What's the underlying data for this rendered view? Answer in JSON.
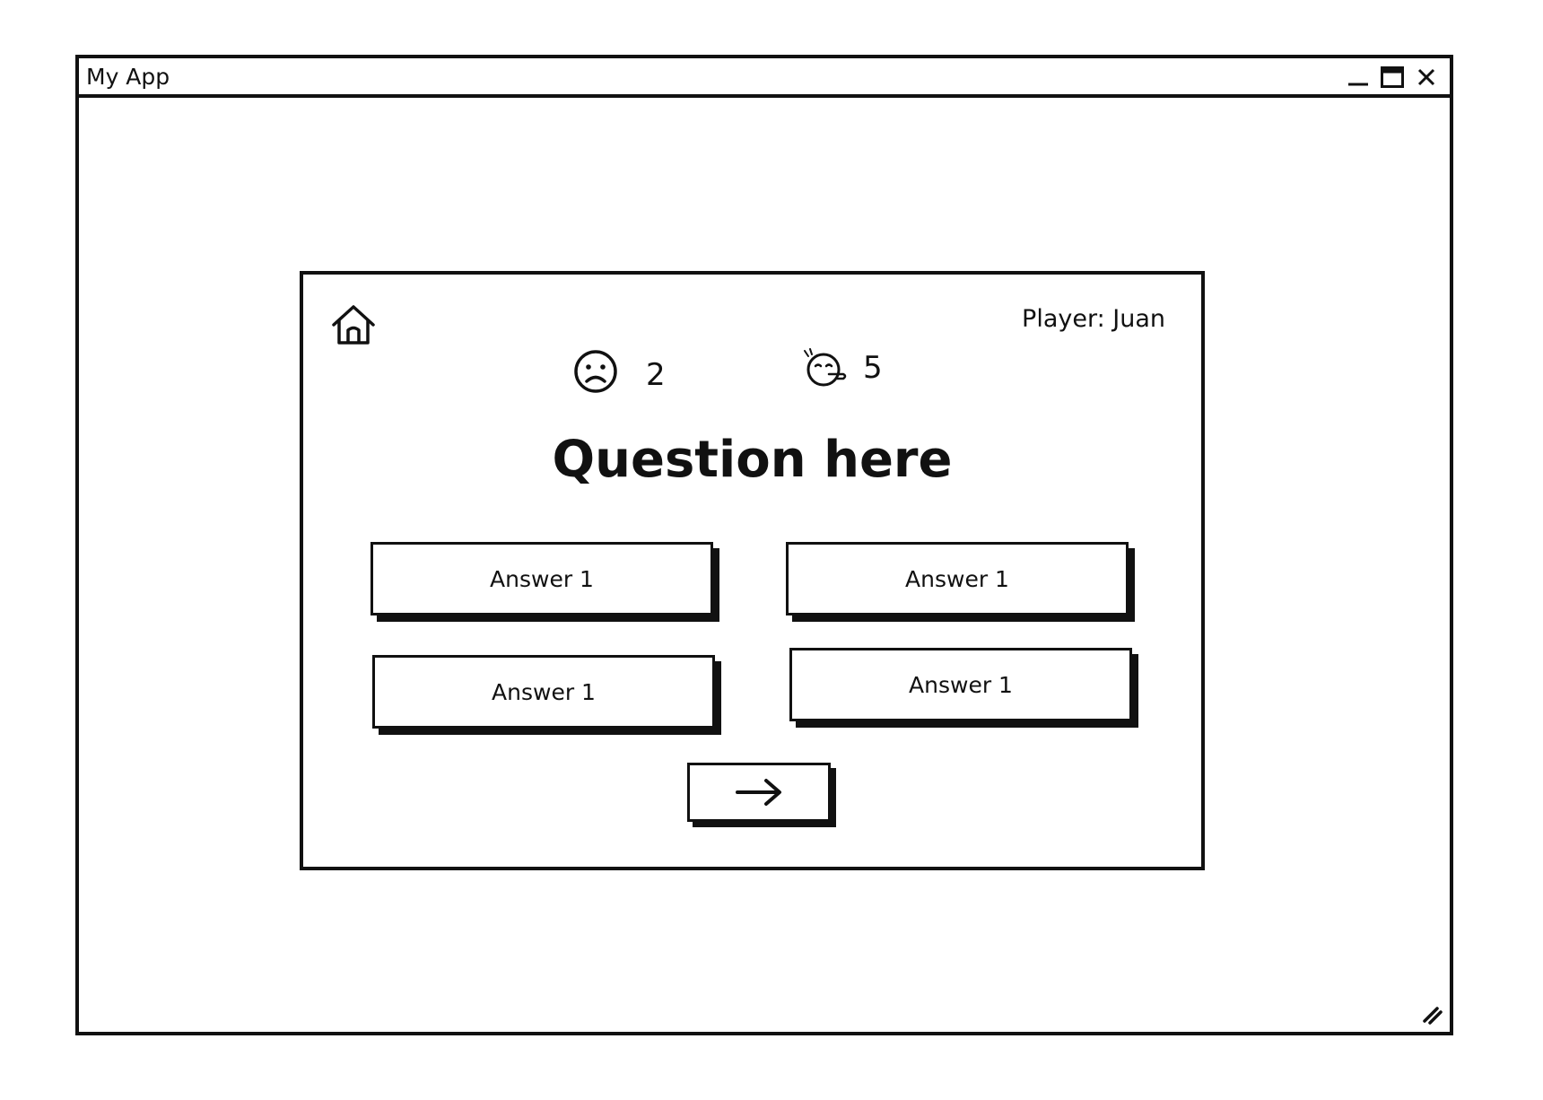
{
  "window": {
    "title": "My App",
    "controls": {
      "minimize": "minimize-icon",
      "maximize": "maximize-icon",
      "close": "close-icon"
    }
  },
  "game": {
    "player_label": "Player: Juan",
    "home_icon": "home-icon",
    "stats": {
      "sad": {
        "icon": "sad-face-icon",
        "value": "2"
      },
      "sleepy": {
        "icon": "sleepy-face-icon",
        "value": "5"
      }
    },
    "question": "Question here",
    "answers": [
      {
        "label": "Answer 1"
      },
      {
        "label": "Answer 1"
      },
      {
        "label": "Answer 1"
      },
      {
        "label": "Answer 1"
      }
    ],
    "next_icon": "arrow-right-icon"
  }
}
